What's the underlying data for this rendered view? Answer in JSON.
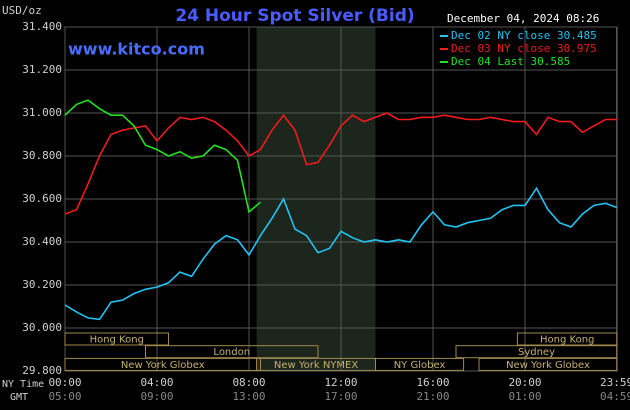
{
  "chart_data": {
    "type": "line",
    "title": "24 Hour Spot Silver (Bid)",
    "y_label": "USD/oz",
    "timestamp": "December 04, 2024 08:26",
    "watermark": "www.kitco.com",
    "x_row_labels": [
      "NY Time",
      "GMT"
    ],
    "x": [
      0,
      0.5,
      1,
      1.5,
      2,
      2.5,
      3,
      3.5,
      4,
      4.5,
      5,
      5.5,
      6,
      6.5,
      7,
      7.5,
      8,
      8.5,
      9,
      9.5,
      10,
      10.5,
      11,
      11.5,
      12,
      12.5,
      13,
      13.5,
      14,
      14.5,
      15,
      15.5,
      16,
      16.5,
      17,
      17.5,
      18,
      18.5,
      19,
      19.5,
      20,
      20.5,
      21,
      21.5,
      22,
      22.5,
      23,
      23.5,
      24
    ],
    "series": [
      {
        "name": "Dec 02 NY close 30.485",
        "color": "#22c4f4",
        "values": [
          30.107,
          30.075,
          30.047,
          30.04,
          30.12,
          30.13,
          30.16,
          30.18,
          30.19,
          30.21,
          30.26,
          30.24,
          30.32,
          30.39,
          30.43,
          30.41,
          30.34,
          30.43,
          30.51,
          30.6,
          30.46,
          30.43,
          30.35,
          30.37,
          30.45,
          30.42,
          30.4,
          30.41,
          30.4,
          30.41,
          30.4,
          30.48,
          30.54,
          30.48,
          30.47,
          30.49,
          30.5,
          30.51,
          30.55,
          30.57,
          30.57,
          30.65,
          30.55,
          30.49,
          30.47,
          30.53,
          30.57,
          30.58,
          30.56
        ]
      },
      {
        "name": "Dec 03 NY close 30.975",
        "color": "#f01c1c",
        "values": [
          30.53,
          30.55,
          30.67,
          30.8,
          30.9,
          30.92,
          30.93,
          30.94,
          30.87,
          30.93,
          30.98,
          30.97,
          30.98,
          30.96,
          30.92,
          30.87,
          30.8,
          30.83,
          30.92,
          30.99,
          30.92,
          30.76,
          30.77,
          30.85,
          30.94,
          30.99,
          30.96,
          30.98,
          31.0,
          30.97,
          30.97,
          30.98,
          30.98,
          30.99,
          30.98,
          30.97,
          30.97,
          30.98,
          30.97,
          30.96,
          30.96,
          30.9,
          30.98,
          30.96,
          30.96,
          30.91,
          30.94,
          30.97,
          30.97
        ]
      },
      {
        "name": "Dec 04 Last 30.585",
        "color": "#22e022",
        "values": [
          30.99,
          31.04,
          31.06,
          31.02,
          30.99,
          30.99,
          30.94,
          30.85,
          30.83,
          30.8,
          30.82,
          30.79,
          30.8,
          30.85,
          30.83,
          30.78,
          30.54,
          30.585,
          null,
          null,
          null,
          null,
          null,
          null,
          null,
          null,
          null,
          null,
          null,
          null,
          null,
          null,
          null,
          null,
          null,
          null,
          null,
          null,
          null,
          null,
          null,
          null,
          null,
          null,
          null,
          null,
          null,
          null,
          null
        ]
      }
    ],
    "xlim": [
      0,
      24
    ],
    "xticks": [
      {
        "value": 0,
        "label": "00:00"
      },
      {
        "value": 4,
        "label": "04:00"
      },
      {
        "value": 8,
        "label": "08:00"
      },
      {
        "value": 12,
        "label": "12:00"
      },
      {
        "value": 16,
        "label": "16:00"
      },
      {
        "value": 20,
        "label": "20:00"
      },
      {
        "value": 23.98,
        "label": "23:59"
      }
    ],
    "gmt_labels": [
      "05:00",
      "09:00",
      "13:00",
      "17:00",
      "21:00",
      "01:00",
      "04:59"
    ],
    "ylim": [
      29.8,
      31.4
    ],
    "yticks": [
      {
        "value": 29.8,
        "label": "29.800"
      },
      {
        "value": 30.0,
        "label": "30.000"
      },
      {
        "value": 30.2,
        "label": "30.200"
      },
      {
        "value": 30.4,
        "label": "30.400"
      },
      {
        "value": 30.6,
        "label": "30.600"
      },
      {
        "value": 30.8,
        "label": "30.800"
      },
      {
        "value": 31.0,
        "label": "31.000"
      },
      {
        "value": 31.2,
        "label": "31.200"
      },
      {
        "value": 31.4,
        "label": "31.400"
      }
    ],
    "grid": true,
    "shaded_session": 5,
    "sessions": [
      {
        "name": "Hong Kong",
        "row": 0,
        "start": 0,
        "end": 4.5
      },
      {
        "name": "Hong Kong",
        "row": 0,
        "start": 19.67,
        "end": 24
      },
      {
        "name": "London",
        "row": 1,
        "start": 3.5,
        "end": 11
      },
      {
        "name": "Sydney",
        "row": 1,
        "start": 17,
        "end": 24
      },
      {
        "name": "New York Globex",
        "row": 2,
        "start": 0,
        "end": 8.5
      },
      {
        "name": "New York NYMEX",
        "row": 2,
        "start": 8.33,
        "end": 13.5
      },
      {
        "name": "NY Globex",
        "row": 2,
        "start": 13.5,
        "end": 17.33
      },
      {
        "name": "New York Globex",
        "row": 2,
        "start": 18,
        "end": 24
      }
    ]
  }
}
